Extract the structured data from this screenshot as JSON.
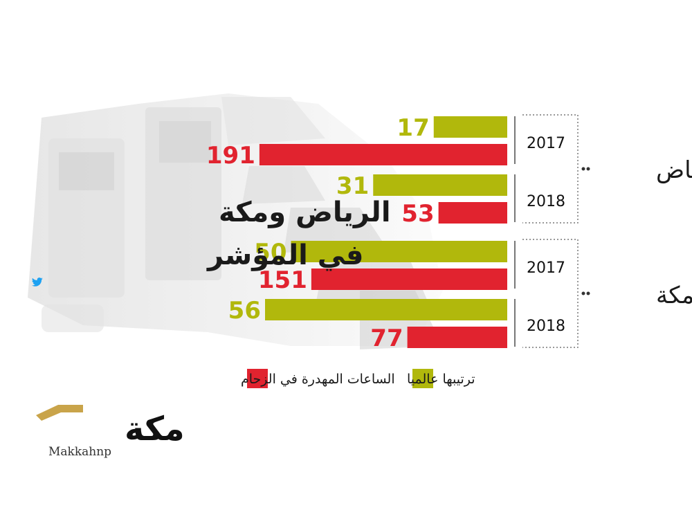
{
  "title": [
    "الرياض ومكة",
    "في المؤشر"
  ],
  "colors": {
    "rank": "#b1b80c",
    "hours": "#e1232f"
  },
  "legend": {
    "rank": "ترتيبها عالميا",
    "hours": "الساعات المهدرة في الزحام"
  },
  "logo": {
    "name": "مكة",
    "handle": "Makkahnp",
    "icon": "twitter-bird-icon"
  },
  "chart_data": {
    "type": "bar",
    "orientation": "horizontal",
    "categories": [
      {
        "city": "الرياض",
        "year": "2017"
      },
      {
        "city": "الرياض",
        "year": "2018"
      },
      {
        "city": "مكة",
        "year": "2017"
      },
      {
        "city": "مكة",
        "year": "2018"
      }
    ],
    "cities": [
      "الرياض",
      "مكة"
    ],
    "series": [
      {
        "name": "ترتيبها عالميا",
        "key": "rank",
        "values": [
          17,
          31,
          50,
          56
        ]
      },
      {
        "name": "الساعات المهدرة في الزحام",
        "key": "hours",
        "values": [
          191,
          53,
          151,
          77
        ]
      }
    ]
  }
}
